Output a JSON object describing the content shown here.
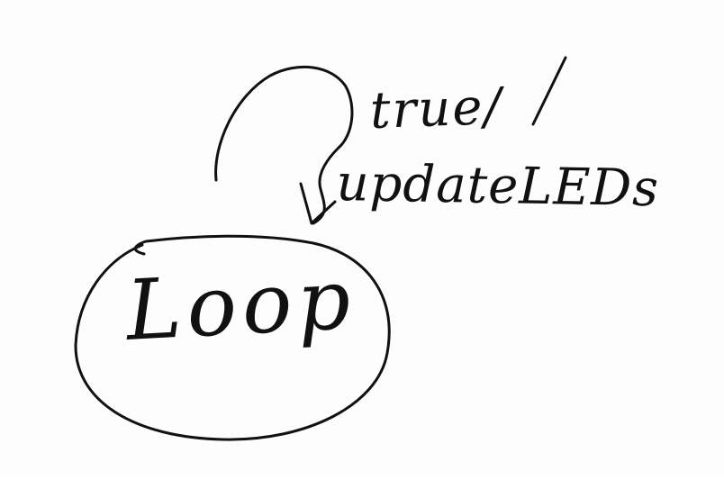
{
  "diagram": {
    "type": "state-machine-sketch",
    "ink_color": "#111111",
    "background_color": "#fdfdfd",
    "state": {
      "label": "Loop"
    },
    "transition": {
      "kind": "self-loop",
      "guard": "true/",
      "action": "updateLEDs"
    }
  }
}
